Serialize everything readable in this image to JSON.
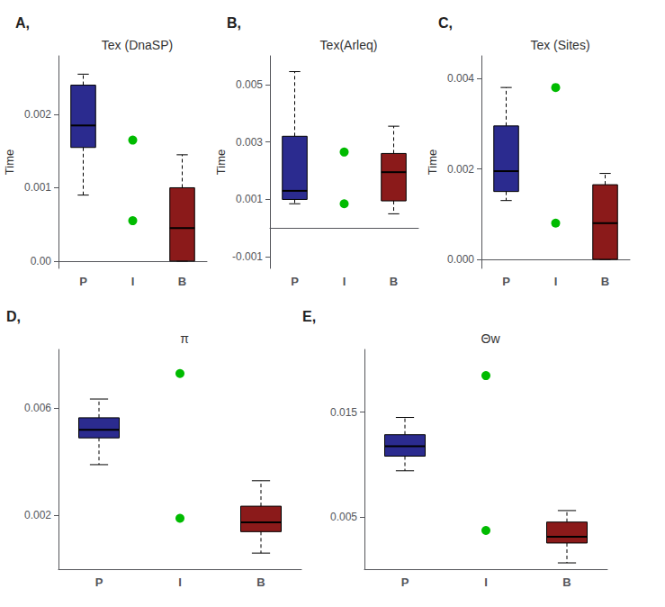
{
  "chart_data": [
    {
      "type": "boxplot",
      "annotation": "A,",
      "title": "Tex (DnaSP)",
      "ylabel": "Time",
      "categories": [
        "P",
        "I",
        "B"
      ],
      "series": [
        {
          "type": "boxplot",
          "colors": [
            "#2b2b8f",
            null,
            "#8b1a1a"
          ],
          "values": [
            {
              "low": 0.0009,
              "q1": 0.00155,
              "median": 0.00185,
              "q3": 0.0024,
              "high": 0.00255
            },
            null,
            {
              "low": 0.0,
              "q1": 0.0,
              "median": 0.00045,
              "q3": 0.001,
              "high": 0.00145
            }
          ]
        },
        {
          "type": "scatter",
          "color": "#00bb00",
          "values": [
            [],
            [
              0.00165,
              0.00055
            ],
            []
          ]
        }
      ],
      "ylim": [
        -0.0001,
        0.0028
      ],
      "yticks": [
        {
          "value": 0.0,
          "label": "0.00"
        },
        0.001,
        0.002
      ],
      "grid": false
    },
    {
      "type": "boxplot",
      "annotation": "B,",
      "title": "Tex(Arleq)",
      "ylabel": "Time",
      "categories": [
        "P",
        "I",
        "B"
      ],
      "series": [
        {
          "type": "boxplot",
          "colors": [
            "#2b2b8f",
            null,
            "#8b1a1a"
          ],
          "values": [
            {
              "low": 0.00085,
              "q1": 0.001,
              "median": 0.0013,
              "q3": 0.0032,
              "high": 0.00545
            },
            null,
            {
              "low": 0.0005,
              "q1": 0.00095,
              "median": 0.00195,
              "q3": 0.0026,
              "high": 0.00355
            }
          ]
        },
        {
          "type": "scatter",
          "color": "#00bb00",
          "values": [
            [],
            [
              0.00265,
              0.00085
            ],
            []
          ]
        }
      ],
      "ylim": [
        -0.0014,
        0.006
      ],
      "yticks": [
        -0.001,
        0.001,
        0.003,
        0.005
      ],
      "grid": false
    },
    {
      "type": "boxplot",
      "annotation": "C,",
      "title": "Tex (Sites)",
      "ylabel": "Time",
      "categories": [
        "P",
        "I",
        "B"
      ],
      "series": [
        {
          "type": "boxplot",
          "colors": [
            "#2b2b8f",
            null,
            "#8b1a1a"
          ],
          "values": [
            {
              "low": 0.0013,
              "q1": 0.0015,
              "median": 0.00195,
              "q3": 0.00295,
              "high": 0.0038
            },
            null,
            {
              "low": 0.0,
              "q1": 0.0,
              "median": 0.0008,
              "q3": 0.00165,
              "high": 0.0019
            }
          ]
        },
        {
          "type": "scatter",
          "color": "#00bb00",
          "values": [
            [],
            [
              0.0038,
              0.0008
            ],
            []
          ]
        }
      ],
      "ylim": [
        -0.0002,
        0.0045
      ],
      "yticks": [
        {
          "value": 0.0,
          "label": "0.000"
        },
        0.002,
        0.004
      ],
      "grid": false
    },
    {
      "type": "boxplot",
      "annotation": "D,",
      "title": "π",
      "categories": [
        "P",
        "I",
        "B"
      ],
      "series": [
        {
          "type": "boxplot",
          "colors": [
            "#2b2b8f",
            null,
            "#8b1a1a"
          ],
          "values": [
            {
              "low": 0.0039,
              "q1": 0.0049,
              "median": 0.0052,
              "q3": 0.00565,
              "high": 0.00635
            },
            null,
            {
              "low": 0.0006,
              "q1": 0.0014,
              "median": 0.00175,
              "q3": 0.00235,
              "high": 0.0033
            }
          ]
        },
        {
          "type": "scatter",
          "color": "#00bb00",
          "values": [
            [],
            [
              0.0073,
              0.0019
            ],
            []
          ]
        }
      ],
      "ylim": [
        0.0,
        0.0082
      ],
      "yticks": [
        0.002,
        0.006
      ],
      "grid": false
    },
    {
      "type": "boxplot",
      "annotation": "E,",
      "title": "Θw",
      "categories": [
        "P",
        "I",
        "B"
      ],
      "series": [
        {
          "type": "boxplot",
          "colors": [
            "#2b2b8f",
            null,
            "#8b1a1a"
          ],
          "values": [
            {
              "low": 0.0094,
              "q1": 0.0108,
              "median": 0.01175,
              "q3": 0.01285,
              "high": 0.0145
            },
            null,
            {
              "low": 0.0006,
              "q1": 0.0025,
              "median": 0.0031,
              "q3": 0.0045,
              "high": 0.0056
            }
          ]
        },
        {
          "type": "scatter",
          "color": "#00bb00",
          "values": [
            [],
            [
              0.0185,
              0.0037
            ],
            []
          ]
        }
      ],
      "ylim": [
        0.0,
        0.021
      ],
      "yticks": [
        0.005,
        0.015
      ],
      "grid": false
    }
  ]
}
